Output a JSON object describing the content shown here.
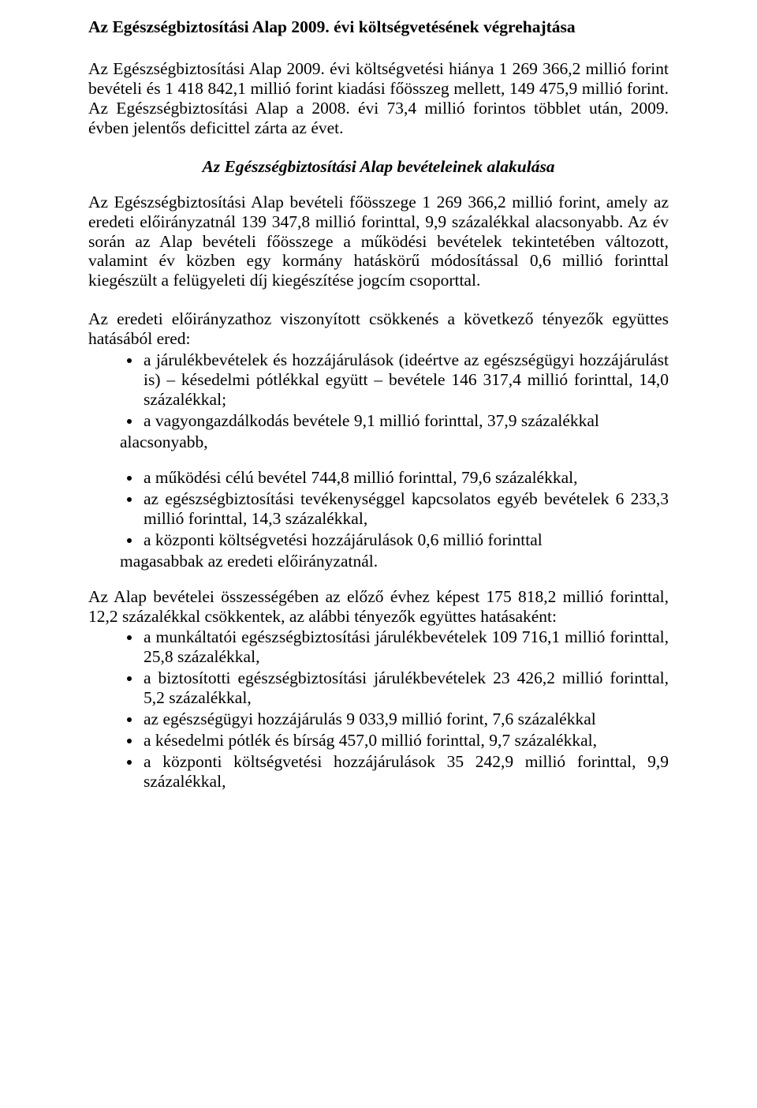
{
  "colors": {
    "text": "#000000",
    "background": "#ffffff"
  },
  "typography": {
    "font_family": "Times New Roman",
    "base_fontsize_pt": 16,
    "title_weight": "bold",
    "subheading_weight": "bold-italic",
    "line_height": 1.16
  },
  "title": "Az Egészségbiztosítási Alap 2009. évi költségvetésének végrehajtása",
  "intro": "Az Egészségbiztosítási Alap 2009. évi költségvetési hiánya 1 269 366,2 millió forint bevételi és 1 418 842,1 millió forint kiadási főösszeg mellett, 149 475,9 millió forint. Az Egészségbiztosítási Alap a 2008. évi 73,4 millió forintos többlet után, 2009. évben jelentős deficittel zárta az évet.",
  "subheading": "Az Egészségbiztosítási Alap bevételeinek alakulása",
  "para1": "Az Egészségbiztosítási Alap bevételi főösszege 1 269 366,2 millió forint, amely az eredeti előirányzatnál 139 347,8 millió forinttal, 9,9 százalékkal alacsonyabb. Az év során az Alap bevételi főösszege a működési bevételek tekintetében változott, valamint év közben egy kormány hatáskörű módosítással 0,6 millió forinttal kiegészült a felügyeleti díj kiegészítése jogcím csoporttal.",
  "lead1": "Az eredeti előirányzathoz viszonyított csökkenés a következő tényezők együttes hatásából ered:",
  "list1": {
    "i0": "a járulékbevételek és hozzájárulások (ideértve az egészségügyi hozzájárulást is) – késedelmi pótlékkal együtt – bevétele 146 317,4 millió forinttal, 14,0 százalékkal;",
    "i1": "a vagyongazdálkodás bevétele 9,1 millió forinttal, 37,9 százalékkal"
  },
  "trail1": "alacsonyabb,",
  "list2": {
    "i0": "a működési célú bevétel 744,8 millió forinttal, 79,6 százalékkal,",
    "i1": "az egészségbiztosítási tevékenységgel kapcsolatos egyéb bevételek 6 233,3 millió forinttal, 14,3 százalékkal,",
    "i2": "a központi költségvetési hozzájárulások 0,6 millió forinttal"
  },
  "trail2": "magasabbak az eredeti előirányzatnál.",
  "lead2": "Az Alap bevételei összességében az előző évhez képest 175 818,2 millió forinttal, 12,2 százalékkal csökkentek, az alábbi tényezők együttes hatásaként:",
  "list3": {
    "i0": "a munkáltatói egészségbiztosítási járulékbevételek 109 716,1 millió forinttal, 25,8 százalékkal,",
    "i1": "a biztosítotti egészségbiztosítási járulékbevételek 23 426,2 millió forinttal, 5,2 százalékkal,",
    "i2": "az egészségügyi hozzájárulás 9 033,9 millió forint, 7,6 százalékkal",
    "i3": "a késedelmi pótlék és bírság 457,0 millió forinttal, 9,7 százalékkal,",
    "i4": "a központi költségvetési hozzájárulások 35 242,9 millió forinttal, 9,9 százalékkal,"
  }
}
